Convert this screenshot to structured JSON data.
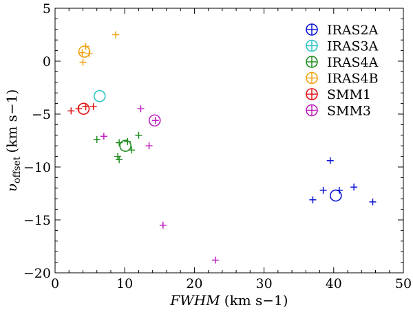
{
  "chart_data": {
    "type": "scatter",
    "title": "",
    "xlabel": "FWHM",
    "xlabel_unit": "(km s−1)",
    "ylabel_symbol": "υ",
    "ylabel_subscript": "offset",
    "ylabel_unit": "(km s−1)",
    "xlim": [
      0,
      50
    ],
    "ylim": [
      -20,
      5
    ],
    "xticks": [
      0,
      10,
      20,
      30,
      40,
      50
    ],
    "xtick_labels": [
      "0",
      "10",
      "20",
      "30",
      "40",
      "50"
    ],
    "yticks": [
      -20,
      -15,
      -10,
      -5,
      0,
      5
    ],
    "ytick_labels": [
      "−20",
      "−15",
      "−10",
      "−5",
      "0",
      "5"
    ],
    "grid": false,
    "legend_position": "top-right",
    "series": [
      {
        "name": "IRAS2A",
        "color": "#0a14d6",
        "points": [
          [
            39.5,
            -9.4
          ],
          [
            38.5,
            -12.2
          ],
          [
            40.8,
            -12.2
          ],
          [
            42.9,
            -11.9
          ],
          [
            37.0,
            -13.1
          ],
          [
            45.6,
            -13.3
          ]
        ],
        "mean": [
          40.3,
          -12.7
        ]
      },
      {
        "name": "IRAS3A",
        "color": "#28c4c4",
        "points": [],
        "mean": [
          6.4,
          -3.3
        ]
      },
      {
        "name": "IRAS4A",
        "color": "#1e8c1e",
        "points": [
          [
            6.0,
            -7.4
          ],
          [
            9.2,
            -7.7
          ],
          [
            12.0,
            -7.0
          ],
          [
            9.0,
            -9.0
          ],
          [
            9.2,
            -9.3
          ],
          [
            11.0,
            -8.4
          ],
          [
            10.4,
            -7.6
          ]
        ],
        "mean": [
          10.1,
          -8.0
        ]
      },
      {
        "name": "IRAS4B",
        "color": "#f0a010",
        "points": [
          [
            8.7,
            2.5
          ],
          [
            4.4,
            1.4
          ],
          [
            3.9,
            0.8
          ],
          [
            4.9,
            0.7
          ],
          [
            4.0,
            -0.1
          ]
        ],
        "mean": [
          4.2,
          0.9
        ]
      },
      {
        "name": "SMM1",
        "color": "#e01414",
        "points": [
          [
            2.3,
            -4.7
          ],
          [
            3.4,
            -4.5
          ],
          [
            5.5,
            -4.3
          ],
          [
            4.4,
            -4.3
          ]
        ],
        "mean": [
          4.1,
          -4.5
        ]
      },
      {
        "name": "SMM3",
        "color": "#c01cc0",
        "points": [
          [
            12.3,
            -4.5
          ],
          [
            14.4,
            -5.6
          ],
          [
            7.0,
            -7.1
          ],
          [
            13.5,
            -8.0
          ],
          [
            15.5,
            -15.5
          ],
          [
            23.0,
            -18.8
          ]
        ],
        "mean": [
          14.3,
          -5.6
        ]
      }
    ]
  }
}
